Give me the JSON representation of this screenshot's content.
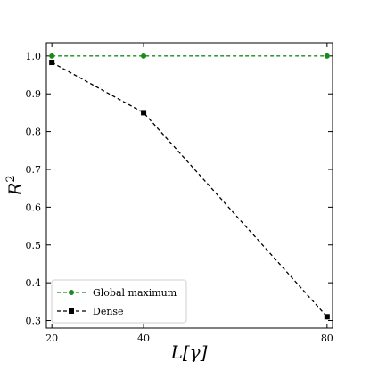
{
  "chart_data": {
    "type": "line",
    "title": "",
    "xlabel": "L[γ]",
    "ylabel": "R²",
    "x": [
      20,
      40,
      80
    ],
    "x_tick_labels": [
      "20",
      "40",
      "80"
    ],
    "y_tick_labels": [
      "0.3",
      "0.4",
      "0.5",
      "0.6",
      "0.7",
      "0.8",
      "0.9",
      "1.0"
    ],
    "y_ticks": [
      0.3,
      0.4,
      0.5,
      0.6,
      0.7,
      0.8,
      0.9,
      1.0
    ],
    "xlim": [
      18.8,
      81.2
    ],
    "ylim": [
      0.28,
      1.035
    ],
    "grid": false,
    "legend_position": "bottom-left",
    "series": [
      {
        "name": "Global maximum",
        "values": [
          1.0,
          1.0,
          1.0
        ],
        "color": "#1a8a1a",
        "marker": "circle",
        "line_style": "dashed"
      },
      {
        "name": "Dense",
        "values": [
          0.983,
          0.85,
          0.31
        ],
        "color": "#000000",
        "marker": "square",
        "line_style": "dashed"
      }
    ]
  }
}
